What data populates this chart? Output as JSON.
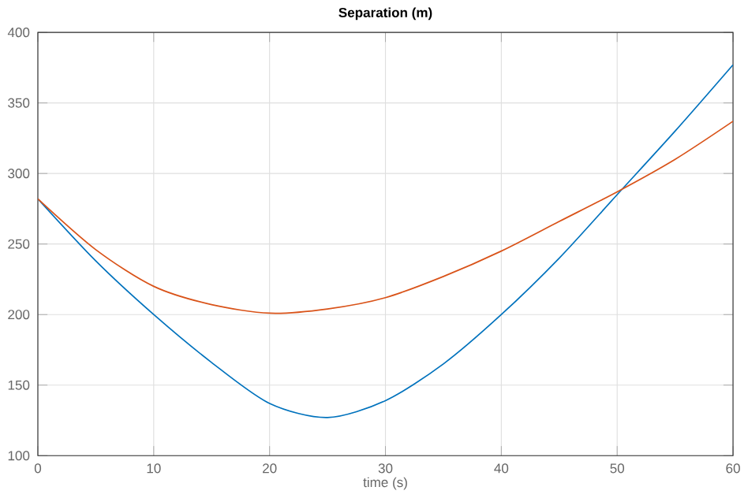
{
  "chart_data": {
    "type": "line",
    "title": "Separation (m)",
    "xlabel": "time (s)",
    "x": [
      0,
      5,
      10,
      15,
      20,
      25,
      30,
      35,
      40,
      45,
      50,
      55,
      60
    ],
    "series": [
      {
        "color": "#0072bd",
        "values": [
          282,
          238,
          200,
          166,
          137,
          127,
          139,
          165,
          200,
          240,
          285,
          330,
          377
        ]
      },
      {
        "color": "#d95319",
        "values": [
          282,
          246,
          220,
          207,
          201,
          204,
          212,
          227,
          245,
          266,
          287,
          310,
          337
        ]
      }
    ],
    "xlim": [
      0,
      60
    ],
    "ylim": [
      100,
      400
    ],
    "xticks": [
      0,
      10,
      20,
      30,
      40,
      50,
      60
    ],
    "yticks": [
      100,
      150,
      200,
      250,
      300,
      350,
      400
    ],
    "grid": true
  }
}
